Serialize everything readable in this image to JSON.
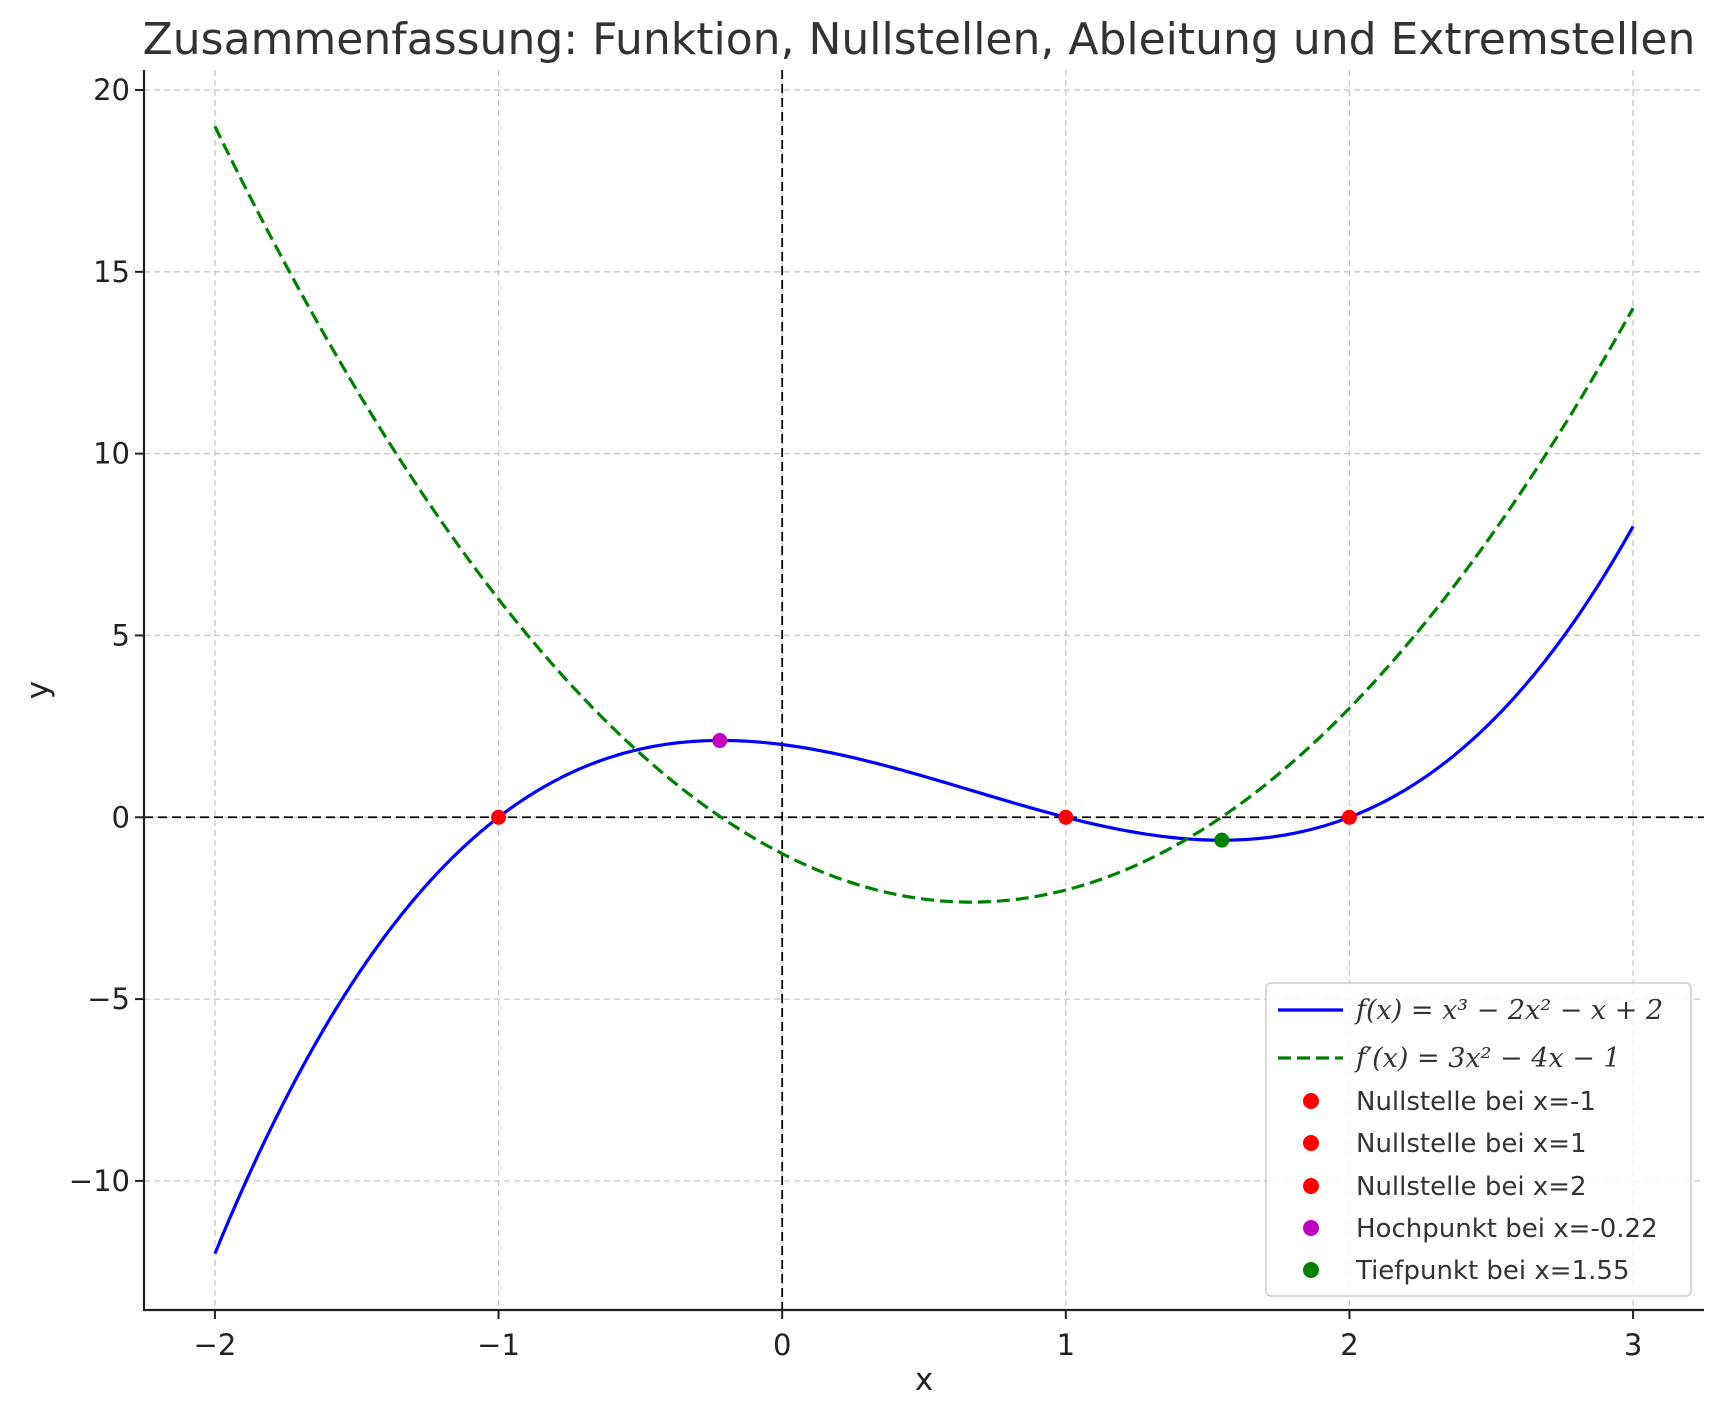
{
  "chart_data": {
    "type": "line",
    "title": "Zusammenfassung: Funktion, Nullstellen, Ableitung und Extremstellen",
    "xlabel": "x",
    "ylabel": "y",
    "xlim": [
      -2.25,
      3.25
    ],
    "ylim": [
      -13.55,
      20.55
    ],
    "x_ticks": [
      -2,
      -1,
      0,
      1,
      2,
      3
    ],
    "x_tick_labels": [
      "−2",
      "−1",
      "0",
      "1",
      "2",
      "3"
    ],
    "y_ticks": [
      -10,
      -5,
      0,
      5,
      10,
      15,
      20
    ],
    "y_tick_labels": [
      "−10",
      "−5",
      "0",
      "5",
      "10",
      "15",
      "20"
    ],
    "grid": true,
    "legend_position": "lower-right",
    "series": [
      {
        "name": "f(x) = x³ − 2x² − x + 2",
        "style": "solid",
        "color": "#0000ff",
        "x_range": [
          -2,
          3
        ],
        "coefficients": [
          1,
          -2,
          -1,
          2
        ]
      },
      {
        "name": "f′(x) = 3x² − 4x − 1",
        "style": "dashed",
        "color": "#008000",
        "x_range": [
          -2,
          3
        ],
        "coefficients": [
          0,
          3,
          -4,
          -1
        ]
      }
    ],
    "points": [
      {
        "name": "Nullstelle bei x=-1",
        "x": -1,
        "y": 0,
        "color": "#ff0000"
      },
      {
        "name": "Nullstelle bei x=1",
        "x": 1,
        "y": 0,
        "color": "#ff0000"
      },
      {
        "name": "Nullstelle bei x=2",
        "x": 2,
        "y": 0,
        "color": "#ff0000"
      },
      {
        "name": "Hochpunkt bei x=-0.22",
        "x": -0.22,
        "y": 2.11,
        "color": "#bf00bf"
      },
      {
        "name": "Tiefpunkt bei x=1.55",
        "x": 1.55,
        "y": -0.63,
        "color": "#008000"
      }
    ],
    "reference_lines": {
      "x_zero": true,
      "y_zero": true
    }
  }
}
